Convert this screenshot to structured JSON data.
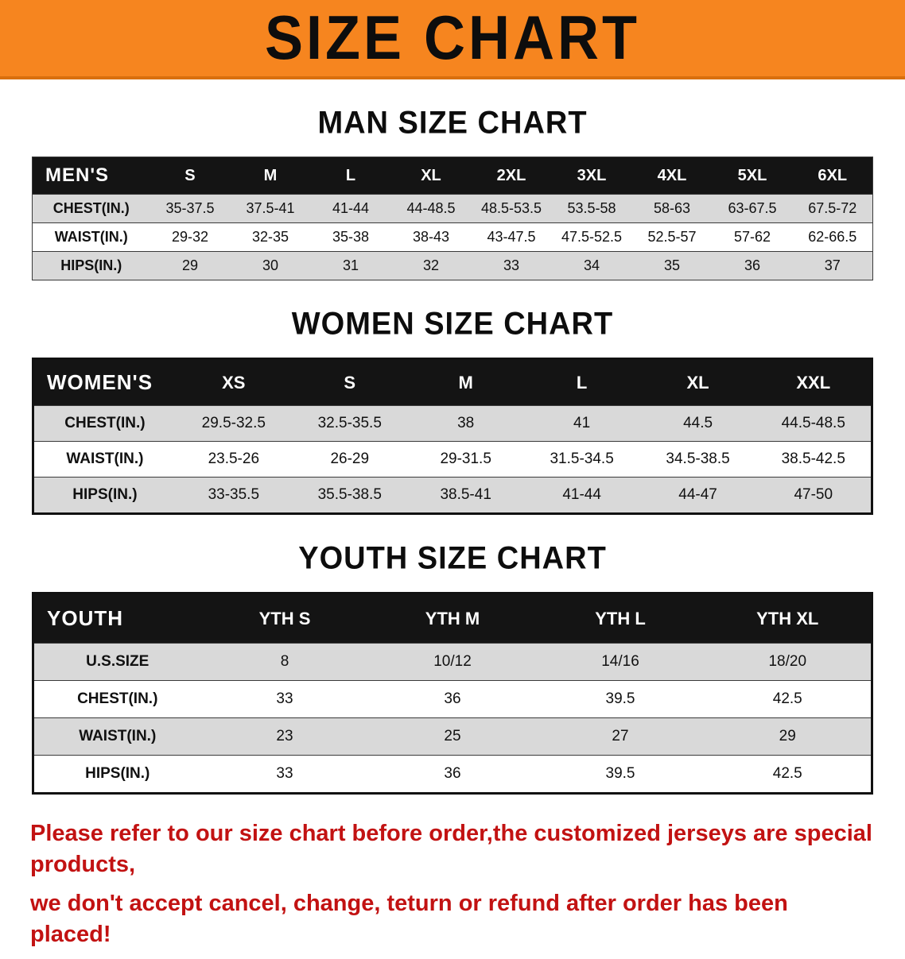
{
  "banner": {
    "title": "SIZE CHART"
  },
  "sections": [
    {
      "heading": "MAN SIZE CHART",
      "table": {
        "header": [
          "MEN'S",
          "S",
          "M",
          "L",
          "XL",
          "2XL",
          "3XL",
          "4XL",
          "5XL",
          "6XL"
        ],
        "rows": [
          [
            "CHEST(IN.)",
            "35-37.5",
            "37.5-41",
            "41-44",
            "44-48.5",
            "48.5-53.5",
            "53.5-58",
            "58-63",
            "63-67.5",
            "67.5-72"
          ],
          [
            "WAIST(IN.)",
            "29-32",
            "32-35",
            "35-38",
            "38-43",
            "43-47.5",
            "47.5-52.5",
            "52.5-57",
            "57-62",
            "62-66.5"
          ],
          [
            "HIPS(IN.)",
            "29",
            "30",
            "31",
            "32",
            "33",
            "34",
            "35",
            "36",
            "37"
          ]
        ]
      }
    },
    {
      "heading": "WOMEN SIZE CHART",
      "table": {
        "header": [
          "WOMEN'S",
          "XS",
          "S",
          "M",
          "L",
          "XL",
          "XXL"
        ],
        "rows": [
          [
            "CHEST(IN.)",
            "29.5-32.5",
            "32.5-35.5",
            "38",
            "41",
            "44.5",
            "44.5-48.5"
          ],
          [
            "WAIST(IN.)",
            "23.5-26",
            "26-29",
            "29-31.5",
            "31.5-34.5",
            "34.5-38.5",
            "38.5-42.5"
          ],
          [
            "HIPS(IN.)",
            "33-35.5",
            "35.5-38.5",
            "38.5-41",
            "41-44",
            "44-47",
            "47-50"
          ]
        ]
      }
    },
    {
      "heading": "YOUTH SIZE CHART",
      "table": {
        "header": [
          "YOUTH",
          "YTH S",
          "YTH M",
          "YTH L",
          "YTH XL"
        ],
        "rows": [
          [
            "U.S.SIZE",
            "8",
            "10/12",
            "14/16",
            "18/20"
          ],
          [
            "CHEST(IN.)",
            "33",
            "36",
            "39.5",
            "42.5"
          ],
          [
            "WAIST(IN.)",
            "23",
            "25",
            "27",
            "29"
          ],
          [
            "HIPS(IN.)",
            "33",
            "36",
            "39.5",
            "42.5"
          ]
        ]
      }
    }
  ],
  "footer": {
    "line1": "Please refer to our size chart before order,the customized jerseys are special products,",
    "line2": "we don't accept cancel, change, teturn or refund after order has been placed!"
  },
  "colors": {
    "banner_bg": "#F6851F",
    "table_header_bg": "#141414",
    "row_alt_bg": "#D9D9D9",
    "footer_text": "#C21212"
  }
}
